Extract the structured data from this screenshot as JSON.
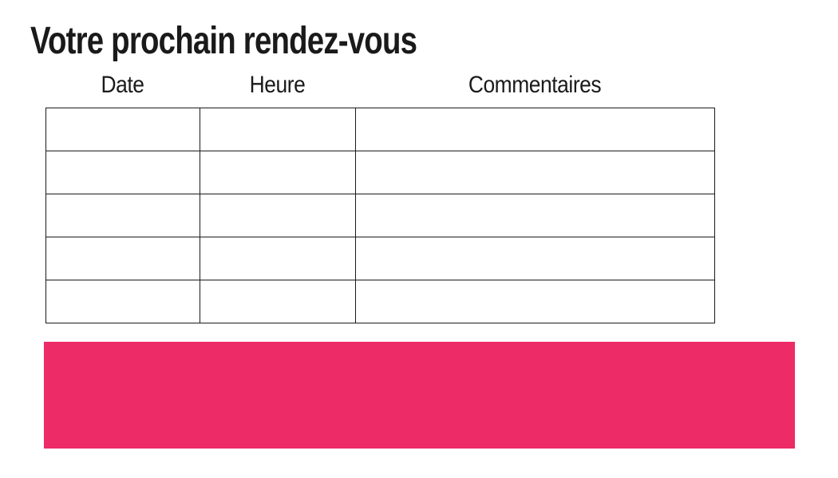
{
  "page": {
    "title": "Votre prochain rendez-vous",
    "background": "#ffffff"
  },
  "table": {
    "columns": [
      {
        "label": "Date"
      },
      {
        "label": "Heure"
      },
      {
        "label": "Commentaires"
      }
    ],
    "rows": [
      [
        "",
        "",
        ""
      ],
      [
        "",
        "",
        ""
      ],
      [
        "",
        "",
        ""
      ],
      [
        "",
        "",
        ""
      ],
      [
        "",
        "",
        ""
      ]
    ],
    "border_color": "#1a1a1a"
  },
  "highlight": {
    "color": "#ED2B67"
  },
  "text_color": "#1a1a1a"
}
